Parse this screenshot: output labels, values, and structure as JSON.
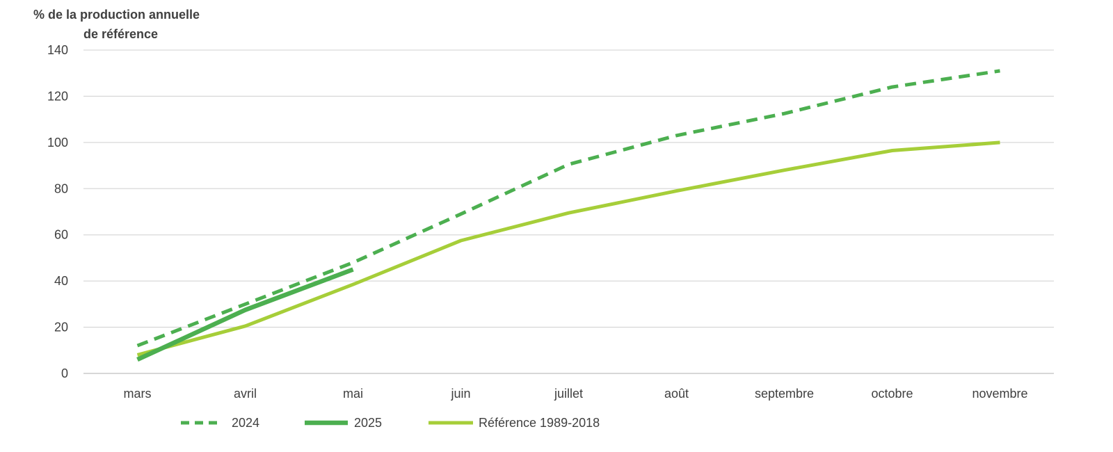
{
  "chart_data": {
    "type": "line",
    "ylabel_line1": "% de  la production  annuelle",
    "ylabel_line2": "de référence",
    "ylim": [
      0,
      140
    ],
    "yticks": [
      "0",
      "20",
      "40",
      "60",
      "80",
      "100",
      "120",
      "140"
    ],
    "categories": [
      "mars",
      "avril",
      "mai",
      "juin",
      "juillet",
      "août",
      "septembre",
      "octobre",
      "novembre"
    ],
    "grid": "horizontal",
    "legend_position": "bottom",
    "series": [
      {
        "name": "2024",
        "color": "#4caf50",
        "style": "dashed",
        "values": [
          12,
          30,
          48,
          69,
          90.5,
          103,
          112.5,
          124,
          131
        ]
      },
      {
        "name": "2025",
        "color": "#4caf50",
        "style": "solid-thick",
        "values": [
          6,
          27.5,
          45,
          null,
          null,
          null,
          null,
          null,
          null
        ]
      },
      {
        "name": "Référence 1989-2018",
        "color": "#a6ce39",
        "style": "solid",
        "values": [
          8,
          20.5,
          38.5,
          57.5,
          69.5,
          79,
          88,
          96.5,
          100
        ]
      }
    ]
  }
}
